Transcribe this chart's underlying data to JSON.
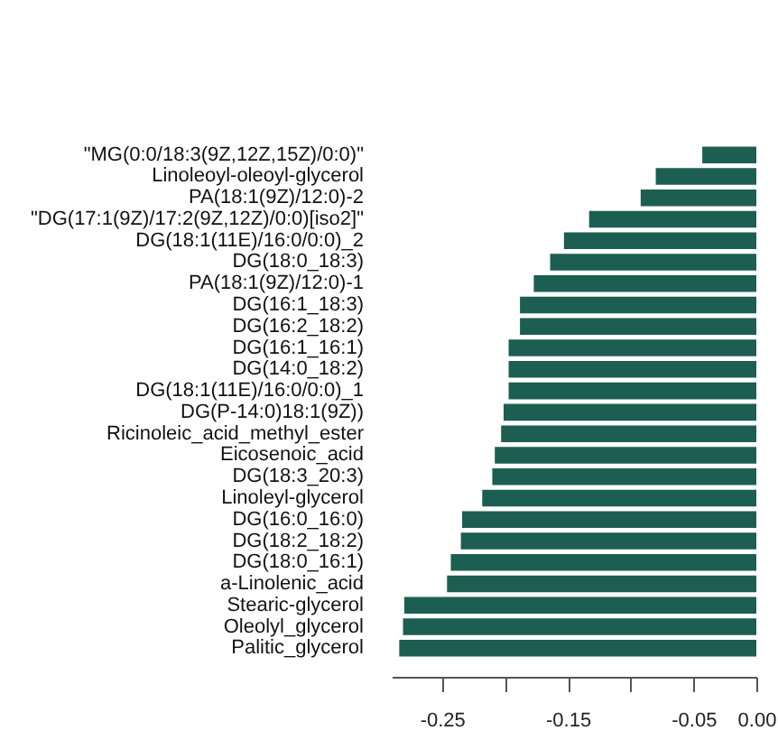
{
  "chart_data": {
    "type": "bar",
    "orientation": "horizontal",
    "color": "#1d5e52",
    "categories": [
      "\"MG(0:0/18:3(9Z,12Z,15Z)/0:0)\"",
      "Linoleoyl-oleoyl-glycerol",
      "PA(18:1(9Z)/12:0)-2",
      "\"DG(17:1(9Z)/17:2(9Z,12Z)/0:0)[iso2]\"",
      "DG(18:1(11E)/16:0/0:0)_2",
      "DG(18:0_18:3)",
      "PA(18:1(9Z)/12:0)-1",
      "DG(16:1_18:3)",
      "DG(16:2_18:2)",
      "DG(16:1_16:1)",
      "DG(14:0_18:2)",
      "DG(18:1(11E)/16:0/0:0)_1",
      "DG(P-14:0)18:1(9Z))",
      "Ricinoleic_acid_methyl_ester",
      "Eicosenoic_acid",
      "DG(18:3_20:3)",
      "Linoleyl-glycerol",
      "DG(16:0_16:0)",
      "DG(18:2_18:2)",
      "DG(18:0_16:1)",
      "a-Linolenic_acid",
      "Stearic-glycerol",
      "Oleolyl_glycerol",
      "Palitic_glycerol"
    ],
    "values": [
      -0.043,
      -0.08,
      -0.092,
      -0.133,
      -0.153,
      -0.164,
      -0.177,
      -0.188,
      -0.188,
      -0.197,
      -0.197,
      -0.197,
      -0.201,
      -0.203,
      -0.208,
      -0.21,
      -0.218,
      -0.234,
      -0.235,
      -0.243,
      -0.246,
      -0.28,
      -0.281,
      -0.284
    ],
    "xlim": [
      -0.29,
      0.0
    ],
    "xticks": [
      -0.25,
      {
        "value": -0.2,
        "label": null
      },
      -0.15,
      {
        "value": -0.1,
        "label": null
      },
      -0.05,
      {
        "value": 0.0,
        "label": "0.00"
      }
    ],
    "grid": false
  }
}
